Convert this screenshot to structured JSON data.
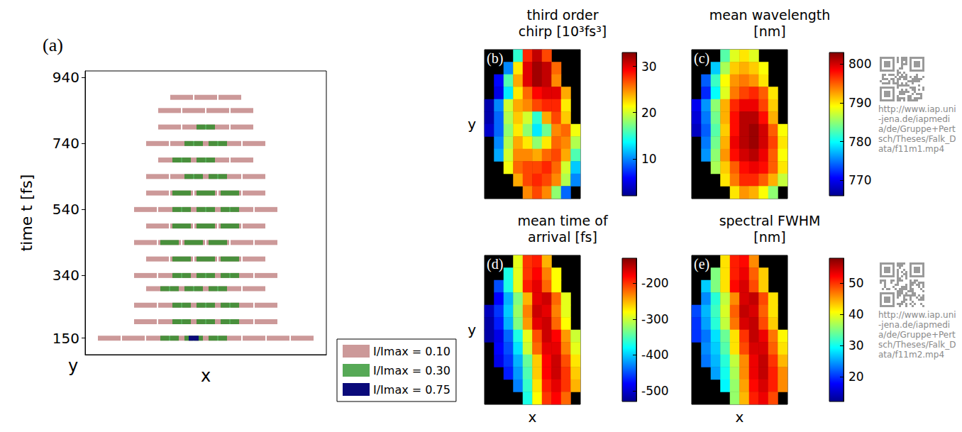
{
  "chart_data": [
    {
      "type": "scatter",
      "panel_label": "(a)",
      "ylabel": "time t [fs]",
      "xlabel": "x",
      "depth_label": "y",
      "xlim": [
        0,
        10
      ],
      "xticks": [],
      "ylim": [
        100,
        960
      ],
      "yticks": [
        150,
        340,
        540,
        740,
        940
      ],
      "tick_labels": "y",
      "legend": "lower right",
      "marker": "rect",
      "series": [
        {
          "name": "I/Imax = 0.10",
          "color": "#8e1c1c",
          "points": [
            [
              1,
              150
            ],
            [
              2,
              150
            ],
            [
              3,
              150
            ],
            [
              4,
              150
            ],
            [
              5,
              150
            ],
            [
              6,
              150
            ],
            [
              7,
              150
            ],
            [
              8,
              150
            ],
            [
              9,
              150
            ],
            [
              2.5,
              200
            ],
            [
              3.5,
              200
            ],
            [
              4.5,
              200
            ],
            [
              5.5,
              200
            ],
            [
              6.5,
              200
            ],
            [
              7.5,
              200
            ],
            [
              2.5,
              250
            ],
            [
              3.5,
              250
            ],
            [
              4.5,
              250
            ],
            [
              5.5,
              250
            ],
            [
              6.5,
              250
            ],
            [
              7.5,
              250
            ],
            [
              3,
              300
            ],
            [
              4,
              300
            ],
            [
              5,
              300
            ],
            [
              6,
              300
            ],
            [
              7,
              300
            ],
            [
              2.5,
              340
            ],
            [
              3.5,
              340
            ],
            [
              4.5,
              340
            ],
            [
              5.5,
              340
            ],
            [
              6.5,
              340
            ],
            [
              7.5,
              340
            ],
            [
              3,
              390
            ],
            [
              4,
              390
            ],
            [
              5,
              390
            ],
            [
              6,
              390
            ],
            [
              7,
              390
            ],
            [
              2.5,
              440
            ],
            [
              3.5,
              440
            ],
            [
              4.5,
              440
            ],
            [
              5.5,
              440
            ],
            [
              6.5,
              440
            ],
            [
              7.5,
              440
            ],
            [
              3,
              490
            ],
            [
              4,
              490
            ],
            [
              5,
              490
            ],
            [
              6,
              490
            ],
            [
              7,
              490
            ],
            [
              2.5,
              540
            ],
            [
              3.5,
              540
            ],
            [
              4.5,
              540
            ],
            [
              5.5,
              540
            ],
            [
              6.5,
              540
            ],
            [
              7.5,
              540
            ],
            [
              3,
              590
            ],
            [
              4,
              590
            ],
            [
              5,
              590
            ],
            [
              6,
              590
            ],
            [
              7,
              590
            ],
            [
              3,
              640
            ],
            [
              4,
              640
            ],
            [
              5,
              640
            ],
            [
              6,
              640
            ],
            [
              7,
              640
            ],
            [
              3.5,
              690
            ],
            [
              4.5,
              690
            ],
            [
              5.5,
              690
            ],
            [
              6.5,
              690
            ],
            [
              3,
              740
            ],
            [
              4,
              740
            ],
            [
              5,
              740
            ],
            [
              6,
              740
            ],
            [
              7,
              740
            ],
            [
              3.5,
              790
            ],
            [
              4.5,
              790
            ],
            [
              5.5,
              790
            ],
            [
              6.5,
              790
            ],
            [
              3.5,
              840
            ],
            [
              4.5,
              840
            ],
            [
              5.5,
              840
            ],
            [
              6.5,
              840
            ],
            [
              4,
              880
            ],
            [
              5,
              880
            ],
            [
              6,
              880
            ]
          ]
        },
        {
          "name": "I/Imax = 0.30",
          "color": "#1e8c1e",
          "points": [
            [
              3.5,
              150
            ],
            [
              4.5,
              150
            ],
            [
              5.5,
              150
            ],
            [
              4,
              200
            ],
            [
              5,
              200
            ],
            [
              6,
              200
            ],
            [
              4,
              250
            ],
            [
              5,
              250
            ],
            [
              6,
              250
            ],
            [
              3.5,
              300
            ],
            [
              4.5,
              300
            ],
            [
              5.5,
              300
            ],
            [
              4,
              340
            ],
            [
              5,
              340
            ],
            [
              6,
              340
            ],
            [
              4,
              390
            ],
            [
              5,
              390
            ],
            [
              6,
              390
            ],
            [
              3.5,
              440
            ],
            [
              4.5,
              440
            ],
            [
              5.5,
              440
            ],
            [
              4,
              490
            ],
            [
              5,
              490
            ],
            [
              6,
              490
            ],
            [
              4,
              540
            ],
            [
              5,
              540
            ],
            [
              6,
              540
            ],
            [
              4,
              590
            ],
            [
              5,
              590
            ],
            [
              6,
              590
            ],
            [
              4.5,
              640
            ],
            [
              5.5,
              640
            ],
            [
              4,
              690
            ],
            [
              5,
              690
            ],
            [
              4.5,
              740
            ],
            [
              5.5,
              740
            ],
            [
              5,
              790
            ]
          ]
        },
        {
          "name": "I/Imax = 0.75",
          "color": "#0a0a7a",
          "points": [
            [
              4.5,
              150
            ]
          ]
        }
      ]
    },
    {
      "type": "heatmap",
      "panel_label": "(b)",
      "title": "third order chirp [10³fs³]",
      "ylabel": "y",
      "tick_labels": false,
      "cells": [
        [
          null,
          null,
          null,
          15,
          28,
          31,
          27,
          null,
          null,
          null
        ],
        [
          null,
          null,
          10,
          22,
          30,
          32,
          31,
          26,
          null,
          null
        ],
        [
          null,
          6,
          16,
          24,
          30,
          32,
          31,
          25,
          null,
          null
        ],
        [
          null,
          5,
          13,
          22,
          26,
          29,
          30,
          30,
          24,
          null
        ],
        [
          3,
          10,
          20,
          24,
          25,
          27,
          28,
          28,
          22,
          null
        ],
        [
          3,
          9,
          19,
          23,
          20,
          15,
          24,
          27,
          23,
          null
        ],
        [
          4,
          9,
          18,
          22,
          18,
          13,
          17,
          25,
          26,
          21
        ],
        [
          null,
          10,
          19,
          24,
          22,
          18,
          22,
          26,
          25,
          19
        ],
        [
          null,
          11,
          20,
          25,
          25,
          24,
          26,
          27,
          24,
          16
        ],
        [
          null,
          null,
          21,
          26,
          27,
          27,
          28,
          26,
          20,
          12
        ],
        [
          null,
          null,
          null,
          24,
          27,
          28,
          27,
          25,
          19,
          10
        ],
        [
          null,
          null,
          null,
          null,
          25,
          27,
          25,
          18,
          9,
          null
        ]
      ],
      "colorbar": {
        "range": [
          2,
          33
        ],
        "ticks": [
          10,
          20,
          30
        ]
      }
    },
    {
      "type": "heatmap",
      "panel_label": "(c)",
      "title": "mean wavelength [nm]",
      "tick_labels": false,
      "cells": [
        [
          null,
          null,
          null,
          783,
          788,
          790,
          788,
          null,
          null,
          null
        ],
        [
          null,
          null,
          778,
          786,
          791,
          792,
          791,
          789,
          null,
          null
        ],
        [
          null,
          774,
          782,
          789,
          793,
          794,
          793,
          790,
          null,
          null
        ],
        [
          null,
          772,
          780,
          788,
          794,
          796,
          797,
          795,
          790,
          null
        ],
        [
          770,
          776,
          785,
          792,
          797,
          799,
          799,
          796,
          791,
          null
        ],
        [
          769,
          775,
          784,
          792,
          798,
          801,
          801,
          798,
          792,
          null
        ],
        [
          768,
          774,
          783,
          791,
          798,
          801,
          802,
          800,
          795,
          789
        ],
        [
          null,
          775,
          784,
          792,
          799,
          801,
          802,
          800,
          796,
          790
        ],
        [
          null,
          776,
          785,
          793,
          798,
          800,
          801,
          799,
          795,
          789
        ],
        [
          null,
          null,
          786,
          791,
          795,
          798,
          799,
          798,
          795,
          790
        ],
        [
          null,
          null,
          null,
          790,
          794,
          797,
          797,
          795,
          792,
          787
        ],
        [
          null,
          null,
          null,
          null,
          790,
          793,
          792,
          789,
          785,
          null
        ]
      ],
      "colorbar": {
        "range": [
          766,
          803
        ],
        "ticks": [
          770,
          780,
          790,
          800
        ]
      }
    },
    {
      "type": "heatmap",
      "panel_label": "(d)",
      "title": "mean time of arrival [fs]",
      "ylabel": "y",
      "xlabel": "x",
      "tick_labels": false,
      "cells": [
        [
          null,
          null,
          null,
          -290,
          -200,
          -190,
          -250,
          null,
          null,
          null
        ],
        [
          null,
          null,
          -370,
          -290,
          -200,
          -180,
          -230,
          -280,
          null,
          null
        ],
        [
          null,
          -450,
          -370,
          -290,
          -190,
          -170,
          -220,
          -280,
          null,
          null
        ],
        [
          null,
          -480,
          -410,
          -330,
          -250,
          -170,
          -160,
          -220,
          -290,
          null
        ],
        [
          -510,
          -460,
          -400,
          -320,
          -230,
          -160,
          -170,
          -230,
          -290,
          null
        ],
        [
          -520,
          -470,
          -410,
          -330,
          -240,
          -170,
          -160,
          -220,
          -280,
          null
        ],
        [
          -520,
          -490,
          -440,
          -370,
          -290,
          -210,
          -160,
          -180,
          -240,
          -300
        ],
        [
          null,
          -480,
          -450,
          -390,
          -300,
          -220,
          -170,
          -170,
          -230,
          -290
        ],
        [
          null,
          -490,
          -460,
          -410,
          -340,
          -260,
          -180,
          -160,
          -210,
          -270
        ],
        [
          null,
          null,
          -470,
          -420,
          -350,
          -260,
          -180,
          -160,
          -200,
          -260
        ],
        [
          null,
          null,
          null,
          -430,
          -360,
          -270,
          -190,
          -170,
          -200,
          -250
        ],
        [
          null,
          null,
          null,
          null,
          -370,
          -280,
          -200,
          -180,
          -220,
          null
        ]
      ],
      "colorbar": {
        "range": [
          -530,
          -130
        ],
        "ticks": [
          -500,
          -400,
          -300,
          -200
        ]
      }
    },
    {
      "type": "heatmap",
      "panel_label": "(e)",
      "title": "spectral FWHM [nm]",
      "xlabel": "x",
      "tick_labels": false,
      "cells": [
        [
          null,
          null,
          null,
          42,
          51,
          52,
          46,
          null,
          null,
          null
        ],
        [
          null,
          null,
          35,
          42,
          51,
          53,
          48,
          43,
          null,
          null
        ],
        [
          null,
          27,
          35,
          42,
          52,
          54,
          49,
          43,
          null,
          null
        ],
        [
          null,
          24,
          31,
          38,
          46,
          54,
          55,
          49,
          42,
          null
        ],
        [
          21,
          26,
          32,
          39,
          48,
          55,
          54,
          48,
          42,
          null
        ],
        [
          20,
          25,
          31,
          38,
          47,
          54,
          55,
          49,
          43,
          null
        ],
        [
          20,
          23,
          28,
          34,
          42,
          50,
          55,
          53,
          47,
          41
        ],
        [
          null,
          24,
          27,
          33,
          42,
          49,
          54,
          54,
          48,
          42
        ],
        [
          null,
          23,
          26,
          31,
          38,
          46,
          53,
          55,
          50,
          44
        ],
        [
          null,
          null,
          25,
          30,
          37,
          46,
          53,
          55,
          51,
          46
        ],
        [
          null,
          null,
          null,
          29,
          36,
          45,
          52,
          54,
          51,
          46
        ],
        [
          null,
          null,
          null,
          null,
          36,
          44,
          51,
          53,
          49,
          null
        ]
      ],
      "colorbar": {
        "range": [
          12,
          58
        ],
        "ticks": [
          20,
          30,
          40,
          50
        ]
      }
    }
  ],
  "links": [
    "http://www.iap.uni-jena.de/iapmedia/de/Gruppe+Pertsch/Theses/Falk_Data/f11m1.mp4",
    "http://www.iap.uni-jena.de/iapmedia/de/Gruppe+Pertsch/Theses/Falk_Data/f11m2.mp4"
  ]
}
